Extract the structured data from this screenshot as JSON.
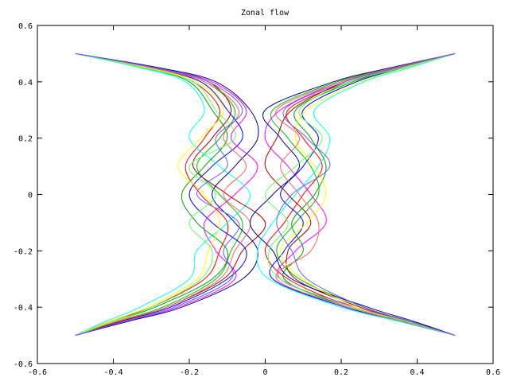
{
  "chart_data": {
    "type": "line",
    "title": "Zonal flow",
    "xlabel": "",
    "ylabel": "",
    "xlim": [
      -0.6,
      0.6
    ],
    "ylim": [
      -0.6,
      0.6
    ],
    "xticks": [
      "-0.6",
      "-0.4",
      "-0.2",
      "0",
      "0.2",
      "0.4",
      "0.6"
    ],
    "yticks": [
      "-0.6",
      "-0.4",
      "-0.2",
      "0",
      "0.2",
      "0.4",
      "0.6"
    ],
    "grid": false,
    "legend": "none",
    "colors": [
      "#ff0000",
      "#00c000",
      "#0000ff",
      "#ff00ff",
      "#00ffff",
      "#a00000",
      "#00a000",
      "#000090",
      "#ffff00",
      "#ff6060",
      "#60ff60",
      "#6060ff"
    ],
    "y_samples": [
      0.5,
      0.45,
      0.4,
      0.3,
      0.2,
      0.1,
      0,
      -0.1,
      -0.2,
      -0.3,
      -0.4,
      -0.45,
      -0.5
    ],
    "series": [
      {
        "x": [
          -0.5,
          -0.32,
          -0.19,
          -0.12,
          -0.16,
          -0.21,
          -0.17,
          -0.1,
          -0.12,
          -0.16,
          -0.3,
          -0.41,
          -0.5
        ]
      },
      {
        "x": [
          -0.5,
          -0.3,
          -0.16,
          -0.08,
          -0.12,
          -0.18,
          -0.12,
          -0.06,
          -0.09,
          -0.13,
          -0.27,
          -0.39,
          -0.5
        ]
      },
      {
        "x": [
          -0.5,
          -0.31,
          -0.17,
          -0.1,
          -0.06,
          -0.14,
          -0.2,
          -0.14,
          -0.05,
          -0.1,
          -0.25,
          -0.38,
          -0.5
        ]
      },
      {
        "x": [
          -0.5,
          -0.29,
          -0.14,
          -0.05,
          -0.09,
          -0.02,
          -0.08,
          -0.16,
          -0.13,
          -0.08,
          -0.23,
          -0.37,
          -0.5
        ]
      },
      {
        "x": [
          -0.5,
          -0.33,
          -0.21,
          -0.16,
          -0.2,
          -0.12,
          -0.04,
          -0.1,
          -0.18,
          -0.2,
          -0.33,
          -0.42,
          -0.5
        ]
      },
      {
        "x": [
          -0.5,
          -0.3,
          -0.15,
          -0.09,
          -0.14,
          -0.19,
          -0.1,
          0.0,
          -0.06,
          -0.11,
          -0.26,
          -0.38,
          -0.5
        ]
      },
      {
        "x": [
          -0.5,
          -0.32,
          -0.2,
          -0.14,
          -0.1,
          -0.16,
          -0.22,
          -0.18,
          -0.1,
          -0.14,
          -0.29,
          -0.4,
          -0.5
        ]
      },
      {
        "x": [
          -0.5,
          -0.28,
          -0.13,
          -0.04,
          -0.02,
          -0.08,
          -0.14,
          -0.08,
          -0.02,
          -0.06,
          -0.22,
          -0.36,
          -0.5
        ]
      },
      {
        "x": [
          -0.5,
          -0.31,
          -0.18,
          -0.11,
          -0.17,
          -0.23,
          -0.16,
          -0.12,
          -0.15,
          -0.18,
          -0.31,
          -0.41,
          -0.5
        ]
      },
      {
        "x": [
          -0.5,
          -0.3,
          -0.16,
          -0.07,
          -0.11,
          -0.05,
          -0.11,
          -0.04,
          -0.08,
          -0.12,
          -0.26,
          -0.39,
          -0.5
        ]
      },
      {
        "x": [
          -0.5,
          -0.32,
          -0.19,
          -0.13,
          -0.08,
          -0.2,
          -0.13,
          -0.2,
          -0.14,
          -0.17,
          -0.3,
          -0.4,
          -0.5
        ]
      },
      {
        "x": [
          -0.5,
          -0.29,
          -0.15,
          -0.06,
          -0.13,
          -0.1,
          -0.18,
          -0.07,
          -0.11,
          -0.09,
          -0.24,
          -0.37,
          -0.5
        ]
      },
      {
        "x": [
          0.5,
          0.36,
          0.22,
          0.06,
          0.1,
          0.15,
          0.1,
          0.05,
          0.0,
          0.06,
          0.23,
          0.37,
          0.5
        ]
      },
      {
        "x": [
          0.5,
          0.34,
          0.19,
          0.02,
          0.06,
          0.12,
          0.14,
          0.08,
          0.03,
          0.09,
          0.26,
          0.38,
          0.5
        ]
      },
      {
        "x": [
          0.5,
          0.37,
          0.24,
          0.1,
          0.14,
          0.1,
          0.04,
          0.1,
          0.05,
          0.02,
          0.21,
          0.36,
          0.5
        ]
      },
      {
        "x": [
          0.5,
          0.35,
          0.2,
          0.04,
          0.0,
          0.06,
          0.12,
          0.16,
          0.08,
          0.04,
          0.24,
          0.37,
          0.5
        ]
      },
      {
        "x": [
          0.5,
          0.38,
          0.26,
          0.13,
          0.17,
          0.14,
          0.08,
          0.02,
          -0.02,
          0.01,
          0.2,
          0.35,
          0.5
        ]
      },
      {
        "x": [
          0.5,
          0.35,
          0.21,
          0.07,
          0.03,
          0.0,
          0.06,
          0.12,
          0.06,
          0.08,
          0.25,
          0.38,
          0.5
        ]
      },
      {
        "x": [
          0.5,
          0.36,
          0.23,
          0.08,
          0.12,
          0.16,
          0.13,
          0.07,
          0.1,
          0.05,
          0.22,
          0.36,
          0.5
        ]
      },
      {
        "x": [
          0.5,
          0.33,
          0.18,
          0.0,
          0.04,
          0.09,
          0.02,
          -0.04,
          0.02,
          0.07,
          0.27,
          0.39,
          0.5
        ]
      },
      {
        "x": [
          0.5,
          0.37,
          0.25,
          0.11,
          0.08,
          0.13,
          0.16,
          0.11,
          0.04,
          0.1,
          0.24,
          0.37,
          0.5
        ]
      },
      {
        "x": [
          0.5,
          0.34,
          0.2,
          0.03,
          0.09,
          0.04,
          0.09,
          0.14,
          0.12,
          0.03,
          0.22,
          0.36,
          0.5
        ]
      },
      {
        "x": [
          0.5,
          0.36,
          0.22,
          0.09,
          0.15,
          0.08,
          0.0,
          0.06,
          0.01,
          0.04,
          0.23,
          0.37,
          0.5
        ]
      },
      {
        "x": [
          0.5,
          0.35,
          0.21,
          0.05,
          0.11,
          0.17,
          0.07,
          0.03,
          0.07,
          0.11,
          0.26,
          0.38,
          0.5
        ]
      }
    ]
  }
}
